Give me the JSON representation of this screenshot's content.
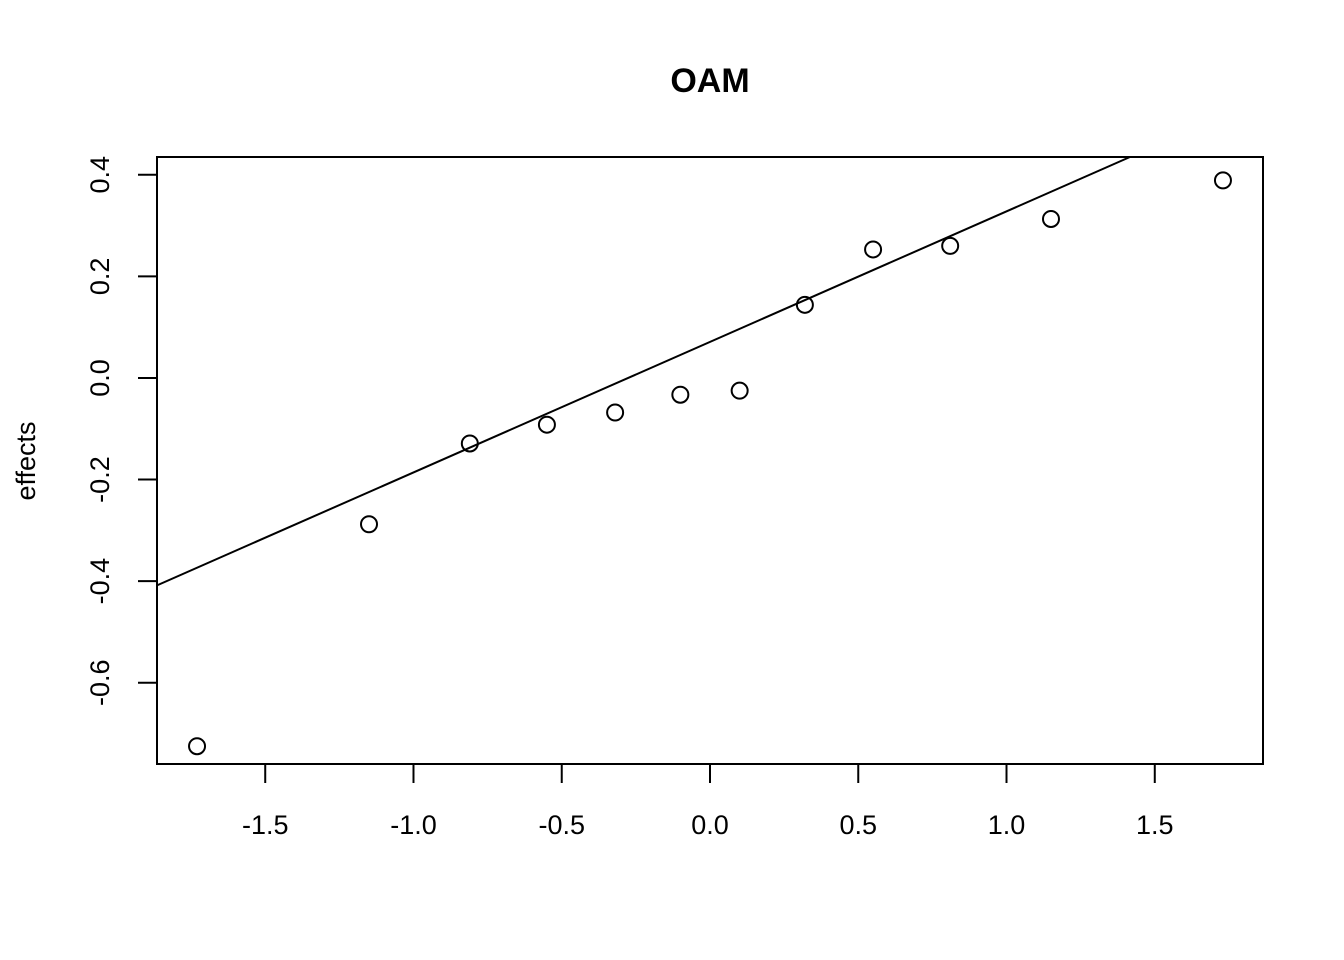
{
  "chart_data": {
    "type": "scatter",
    "title": "OAM",
    "xlabel": "",
    "ylabel": "effects",
    "xlim": [
      -1.865,
      1.865
    ],
    "ylim": [
      -0.76,
      0.435
    ],
    "x_ticks": [
      -1.5,
      -1.0,
      -0.5,
      0.0,
      0.5,
      1.0,
      1.5
    ],
    "x_tick_labels": [
      "-1.5",
      "-1.0",
      "-0.5",
      "0.0",
      "0.5",
      "1.0",
      "1.5"
    ],
    "y_ticks": [
      -0.6,
      -0.4,
      -0.2,
      0.0,
      0.2,
      0.4
    ],
    "y_tick_labels": [
      "-0.6",
      "-0.4",
      "-0.2",
      "0.0",
      "0.2",
      "0.4"
    ],
    "grid": false,
    "series": [
      {
        "points": [
          {
            "x": -1.73,
            "y": -0.725
          },
          {
            "x": -1.15,
            "y": -0.288
          },
          {
            "x": -0.81,
            "y": -0.129
          },
          {
            "x": -0.55,
            "y": -0.092
          },
          {
            "x": -0.32,
            "y": -0.068
          },
          {
            "x": -0.1,
            "y": -0.033
          },
          {
            "x": 0.1,
            "y": -0.025
          },
          {
            "x": 0.32,
            "y": 0.144
          },
          {
            "x": 0.55,
            "y": 0.253
          },
          {
            "x": 0.81,
            "y": 0.26
          },
          {
            "x": 1.15,
            "y": 0.313
          },
          {
            "x": 1.73,
            "y": 0.389
          }
        ]
      }
    ],
    "reference_line": {
      "intercept": 0.071,
      "slope": 0.257
    }
  }
}
